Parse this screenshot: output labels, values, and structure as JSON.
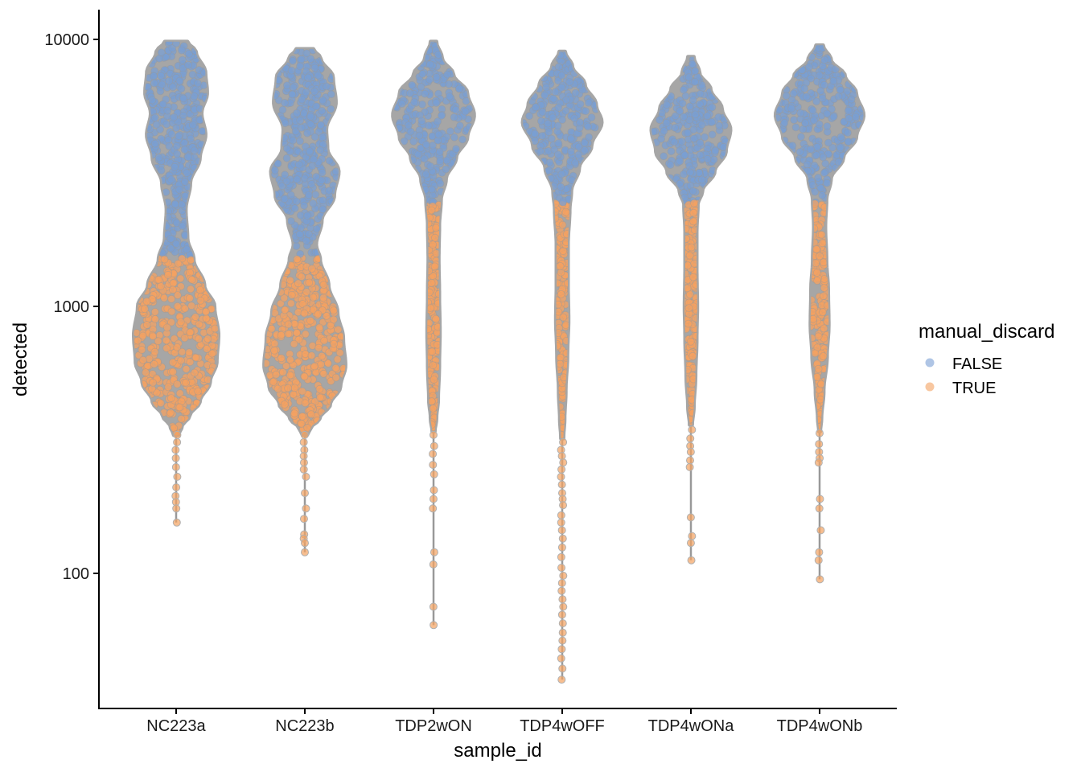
{
  "chart_data": {
    "type": "violin",
    "xlabel": "sample_id",
    "ylabel": "detected",
    "y_scale": "log10",
    "ylim": [
      33,
      12000
    ],
    "y_ticks": [
      {
        "value": 100,
        "label": "100"
      },
      {
        "value": 1000,
        "label": "1000"
      },
      {
        "value": 10000,
        "label": "10000"
      }
    ],
    "categories": [
      "NC223a",
      "NC223b",
      "TDP2wON",
      "TDP4wOFF",
      "TDP4wONa",
      "TDP4wONb"
    ],
    "legend": {
      "title": "manual_discard",
      "position": "right",
      "entries": [
        {
          "label": "FALSE",
          "color": "#7a9fd3"
        },
        {
          "label": "TRUE",
          "color": "#f4a261"
        }
      ]
    },
    "colors": {
      "FALSE": "#7a9fd3",
      "TRUE": "#f4a261",
      "violin_outline": "#a6a6a6",
      "whisker": "#999999"
    },
    "grid": false,
    "violins": [
      {
        "category": "NC223a",
        "discard_threshold": 1520,
        "min": 155,
        "max": 9800,
        "density": [
          [
            9800,
            0.2
          ],
          [
            9000,
            0.35
          ],
          [
            7500,
            0.52
          ],
          [
            6300,
            0.55
          ],
          [
            5300,
            0.45
          ],
          [
            4400,
            0.52
          ],
          [
            3600,
            0.42
          ],
          [
            2900,
            0.25
          ],
          [
            2300,
            0.17
          ],
          [
            1800,
            0.2
          ],
          [
            1500,
            0.31
          ],
          [
            1200,
            0.5
          ],
          [
            1000,
            0.68
          ],
          [
            780,
            0.75
          ],
          [
            620,
            0.72
          ],
          [
            520,
            0.6
          ],
          [
            440,
            0.42
          ],
          [
            390,
            0.24
          ],
          [
            355,
            0.1
          ],
          [
            330,
            0.04
          ]
        ],
        "outliers_true": [
          330,
          310,
          290,
          270,
          250,
          230,
          210,
          195,
          185,
          175,
          155
        ]
      },
      {
        "category": "NC223b",
        "discard_threshold": 1520,
        "min": 120,
        "max": 9200,
        "density": [
          [
            9200,
            0.15
          ],
          [
            8500,
            0.28
          ],
          [
            7200,
            0.5
          ],
          [
            5800,
            0.55
          ],
          [
            4600,
            0.38
          ],
          [
            3900,
            0.4
          ],
          [
            3200,
            0.6
          ],
          [
            2600,
            0.52
          ],
          [
            2100,
            0.3
          ],
          [
            1700,
            0.2
          ],
          [
            1500,
            0.27
          ],
          [
            1200,
            0.42
          ],
          [
            950,
            0.58
          ],
          [
            760,
            0.68
          ],
          [
            600,
            0.72
          ],
          [
            500,
            0.63
          ],
          [
            430,
            0.45
          ],
          [
            380,
            0.26
          ],
          [
            350,
            0.1
          ],
          [
            330,
            0.04
          ]
        ],
        "outliers_true": [
          330,
          310,
          290,
          275,
          260,
          245,
          230,
          200,
          175,
          160,
          140,
          135,
          130,
          120
        ]
      },
      {
        "category": "TDP2wON",
        "discard_threshold": 2450,
        "min": 64,
        "max": 9800,
        "density": [
          [
            9800,
            0.05
          ],
          [
            8500,
            0.15
          ],
          [
            7400,
            0.35
          ],
          [
            6300,
            0.6
          ],
          [
            5200,
            0.72
          ],
          [
            4300,
            0.6
          ],
          [
            3600,
            0.4
          ],
          [
            3000,
            0.22
          ],
          [
            2500,
            0.13
          ],
          [
            2000,
            0.1
          ],
          [
            1500,
            0.09
          ],
          [
            1100,
            0.1
          ],
          [
            800,
            0.11
          ],
          [
            600,
            0.1
          ],
          [
            450,
            0.08
          ],
          [
            380,
            0.05
          ],
          [
            340,
            0.02
          ]
        ],
        "outliers_true": [
          330,
          300,
          280,
          255,
          235,
          205,
          190,
          175,
          120,
          108,
          75,
          64
        ]
      },
      {
        "category": "TDP4wOFF",
        "discard_threshold": 2450,
        "min": 40,
        "max": 9000,
        "density": [
          [
            9000,
            0.05
          ],
          [
            7900,
            0.18
          ],
          [
            6800,
            0.4
          ],
          [
            5700,
            0.6
          ],
          [
            4900,
            0.7
          ],
          [
            4000,
            0.52
          ],
          [
            3300,
            0.3
          ],
          [
            2700,
            0.16
          ],
          [
            2300,
            0.13
          ],
          [
            1700,
            0.1
          ],
          [
            1200,
            0.1
          ],
          [
            900,
            0.11
          ],
          [
            650,
            0.09
          ],
          [
            480,
            0.06
          ],
          [
            380,
            0.04
          ],
          [
            320,
            0.02
          ]
        ],
        "outliers_true": [
          310,
          290,
          275,
          260,
          245,
          230,
          215,
          200,
          190,
          180,
          165,
          155,
          145,
          135,
          125,
          115,
          105,
          98,
          92,
          86,
          80,
          75,
          70,
          65,
          60,
          56,
          52,
          48,
          44,
          40
        ]
      },
      {
        "category": "TDP4wONa",
        "discard_threshold": 2450,
        "min": 112,
        "max": 8600,
        "density": [
          [
            8600,
            0.05
          ],
          [
            7500,
            0.15
          ],
          [
            6500,
            0.35
          ],
          [
            5500,
            0.55
          ],
          [
            4600,
            0.7
          ],
          [
            3800,
            0.62
          ],
          [
            3200,
            0.42
          ],
          [
            2700,
            0.2
          ],
          [
            2400,
            0.12
          ],
          [
            1900,
            0.1
          ],
          [
            1400,
            0.1
          ],
          [
            1000,
            0.11
          ],
          [
            750,
            0.1
          ],
          [
            550,
            0.08
          ],
          [
            420,
            0.05
          ],
          [
            360,
            0.02
          ]
        ],
        "outliers_true": [
          345,
          320,
          300,
          285,
          265,
          250,
          162,
          138,
          130,
          112
        ]
      },
      {
        "category": "TDP4wONb",
        "discard_threshold": 2450,
        "min": 95,
        "max": 9500,
        "density": [
          [
            9500,
            0.06
          ],
          [
            8400,
            0.2
          ],
          [
            7300,
            0.45
          ],
          [
            6300,
            0.65
          ],
          [
            5200,
            0.78
          ],
          [
            4300,
            0.65
          ],
          [
            3600,
            0.42
          ],
          [
            3000,
            0.2
          ],
          [
            2500,
            0.12
          ],
          [
            2000,
            0.1
          ],
          [
            1500,
            0.12
          ],
          [
            1150,
            0.15
          ],
          [
            850,
            0.16
          ],
          [
            650,
            0.13
          ],
          [
            480,
            0.07
          ],
          [
            380,
            0.03
          ],
          [
            340,
            0.01
          ]
        ],
        "outliers_true": [
          335,
          305,
          285,
          270,
          260,
          190,
          175,
          145,
          120,
          112,
          95
        ]
      }
    ]
  }
}
